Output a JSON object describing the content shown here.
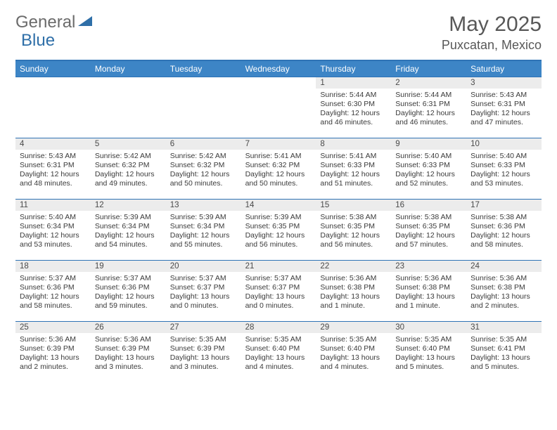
{
  "logo": {
    "general": "General",
    "blue": "Blue"
  },
  "title": "May 2025",
  "location": "Puxcatan, Mexico",
  "colors": {
    "header_bg": "#3d85c6",
    "header_text": "#ffffff",
    "rule": "#2f73b5",
    "daynum_bg": "#ececec",
    "body_text": "#3a3a3a",
    "title_text": "#585858",
    "logo_gray": "#6b6b6b",
    "logo_blue": "#2f6fa8"
  },
  "dow": [
    "Sunday",
    "Monday",
    "Tuesday",
    "Wednesday",
    "Thursday",
    "Friday",
    "Saturday"
  ],
  "weeks": [
    [
      {
        "n": "",
        "sr": "",
        "ss": "",
        "dl": ""
      },
      {
        "n": "",
        "sr": "",
        "ss": "",
        "dl": ""
      },
      {
        "n": "",
        "sr": "",
        "ss": "",
        "dl": ""
      },
      {
        "n": "",
        "sr": "",
        "ss": "",
        "dl": ""
      },
      {
        "n": "1",
        "sr": "Sunrise: 5:44 AM",
        "ss": "Sunset: 6:30 PM",
        "dl": "Daylight: 12 hours and 46 minutes."
      },
      {
        "n": "2",
        "sr": "Sunrise: 5:44 AM",
        "ss": "Sunset: 6:31 PM",
        "dl": "Daylight: 12 hours and 46 minutes."
      },
      {
        "n": "3",
        "sr": "Sunrise: 5:43 AM",
        "ss": "Sunset: 6:31 PM",
        "dl": "Daylight: 12 hours and 47 minutes."
      }
    ],
    [
      {
        "n": "4",
        "sr": "Sunrise: 5:43 AM",
        "ss": "Sunset: 6:31 PM",
        "dl": "Daylight: 12 hours and 48 minutes."
      },
      {
        "n": "5",
        "sr": "Sunrise: 5:42 AM",
        "ss": "Sunset: 6:32 PM",
        "dl": "Daylight: 12 hours and 49 minutes."
      },
      {
        "n": "6",
        "sr": "Sunrise: 5:42 AM",
        "ss": "Sunset: 6:32 PM",
        "dl": "Daylight: 12 hours and 50 minutes."
      },
      {
        "n": "7",
        "sr": "Sunrise: 5:41 AM",
        "ss": "Sunset: 6:32 PM",
        "dl": "Daylight: 12 hours and 50 minutes."
      },
      {
        "n": "8",
        "sr": "Sunrise: 5:41 AM",
        "ss": "Sunset: 6:33 PM",
        "dl": "Daylight: 12 hours and 51 minutes."
      },
      {
        "n": "9",
        "sr": "Sunrise: 5:40 AM",
        "ss": "Sunset: 6:33 PM",
        "dl": "Daylight: 12 hours and 52 minutes."
      },
      {
        "n": "10",
        "sr": "Sunrise: 5:40 AM",
        "ss": "Sunset: 6:33 PM",
        "dl": "Daylight: 12 hours and 53 minutes."
      }
    ],
    [
      {
        "n": "11",
        "sr": "Sunrise: 5:40 AM",
        "ss": "Sunset: 6:34 PM",
        "dl": "Daylight: 12 hours and 53 minutes."
      },
      {
        "n": "12",
        "sr": "Sunrise: 5:39 AM",
        "ss": "Sunset: 6:34 PM",
        "dl": "Daylight: 12 hours and 54 minutes."
      },
      {
        "n": "13",
        "sr": "Sunrise: 5:39 AM",
        "ss": "Sunset: 6:34 PM",
        "dl": "Daylight: 12 hours and 55 minutes."
      },
      {
        "n": "14",
        "sr": "Sunrise: 5:39 AM",
        "ss": "Sunset: 6:35 PM",
        "dl": "Daylight: 12 hours and 56 minutes."
      },
      {
        "n": "15",
        "sr": "Sunrise: 5:38 AM",
        "ss": "Sunset: 6:35 PM",
        "dl": "Daylight: 12 hours and 56 minutes."
      },
      {
        "n": "16",
        "sr": "Sunrise: 5:38 AM",
        "ss": "Sunset: 6:35 PM",
        "dl": "Daylight: 12 hours and 57 minutes."
      },
      {
        "n": "17",
        "sr": "Sunrise: 5:38 AM",
        "ss": "Sunset: 6:36 PM",
        "dl": "Daylight: 12 hours and 58 minutes."
      }
    ],
    [
      {
        "n": "18",
        "sr": "Sunrise: 5:37 AM",
        "ss": "Sunset: 6:36 PM",
        "dl": "Daylight: 12 hours and 58 minutes."
      },
      {
        "n": "19",
        "sr": "Sunrise: 5:37 AM",
        "ss": "Sunset: 6:36 PM",
        "dl": "Daylight: 12 hours and 59 minutes."
      },
      {
        "n": "20",
        "sr": "Sunrise: 5:37 AM",
        "ss": "Sunset: 6:37 PM",
        "dl": "Daylight: 13 hours and 0 minutes."
      },
      {
        "n": "21",
        "sr": "Sunrise: 5:37 AM",
        "ss": "Sunset: 6:37 PM",
        "dl": "Daylight: 13 hours and 0 minutes."
      },
      {
        "n": "22",
        "sr": "Sunrise: 5:36 AM",
        "ss": "Sunset: 6:38 PM",
        "dl": "Daylight: 13 hours and 1 minute."
      },
      {
        "n": "23",
        "sr": "Sunrise: 5:36 AM",
        "ss": "Sunset: 6:38 PM",
        "dl": "Daylight: 13 hours and 1 minute."
      },
      {
        "n": "24",
        "sr": "Sunrise: 5:36 AM",
        "ss": "Sunset: 6:38 PM",
        "dl": "Daylight: 13 hours and 2 minutes."
      }
    ],
    [
      {
        "n": "25",
        "sr": "Sunrise: 5:36 AM",
        "ss": "Sunset: 6:39 PM",
        "dl": "Daylight: 13 hours and 2 minutes."
      },
      {
        "n": "26",
        "sr": "Sunrise: 5:36 AM",
        "ss": "Sunset: 6:39 PM",
        "dl": "Daylight: 13 hours and 3 minutes."
      },
      {
        "n": "27",
        "sr": "Sunrise: 5:35 AM",
        "ss": "Sunset: 6:39 PM",
        "dl": "Daylight: 13 hours and 3 minutes."
      },
      {
        "n": "28",
        "sr": "Sunrise: 5:35 AM",
        "ss": "Sunset: 6:40 PM",
        "dl": "Daylight: 13 hours and 4 minutes."
      },
      {
        "n": "29",
        "sr": "Sunrise: 5:35 AM",
        "ss": "Sunset: 6:40 PM",
        "dl": "Daylight: 13 hours and 4 minutes."
      },
      {
        "n": "30",
        "sr": "Sunrise: 5:35 AM",
        "ss": "Sunset: 6:40 PM",
        "dl": "Daylight: 13 hours and 5 minutes."
      },
      {
        "n": "31",
        "sr": "Sunrise: 5:35 AM",
        "ss": "Sunset: 6:41 PM",
        "dl": "Daylight: 13 hours and 5 minutes."
      }
    ]
  ]
}
